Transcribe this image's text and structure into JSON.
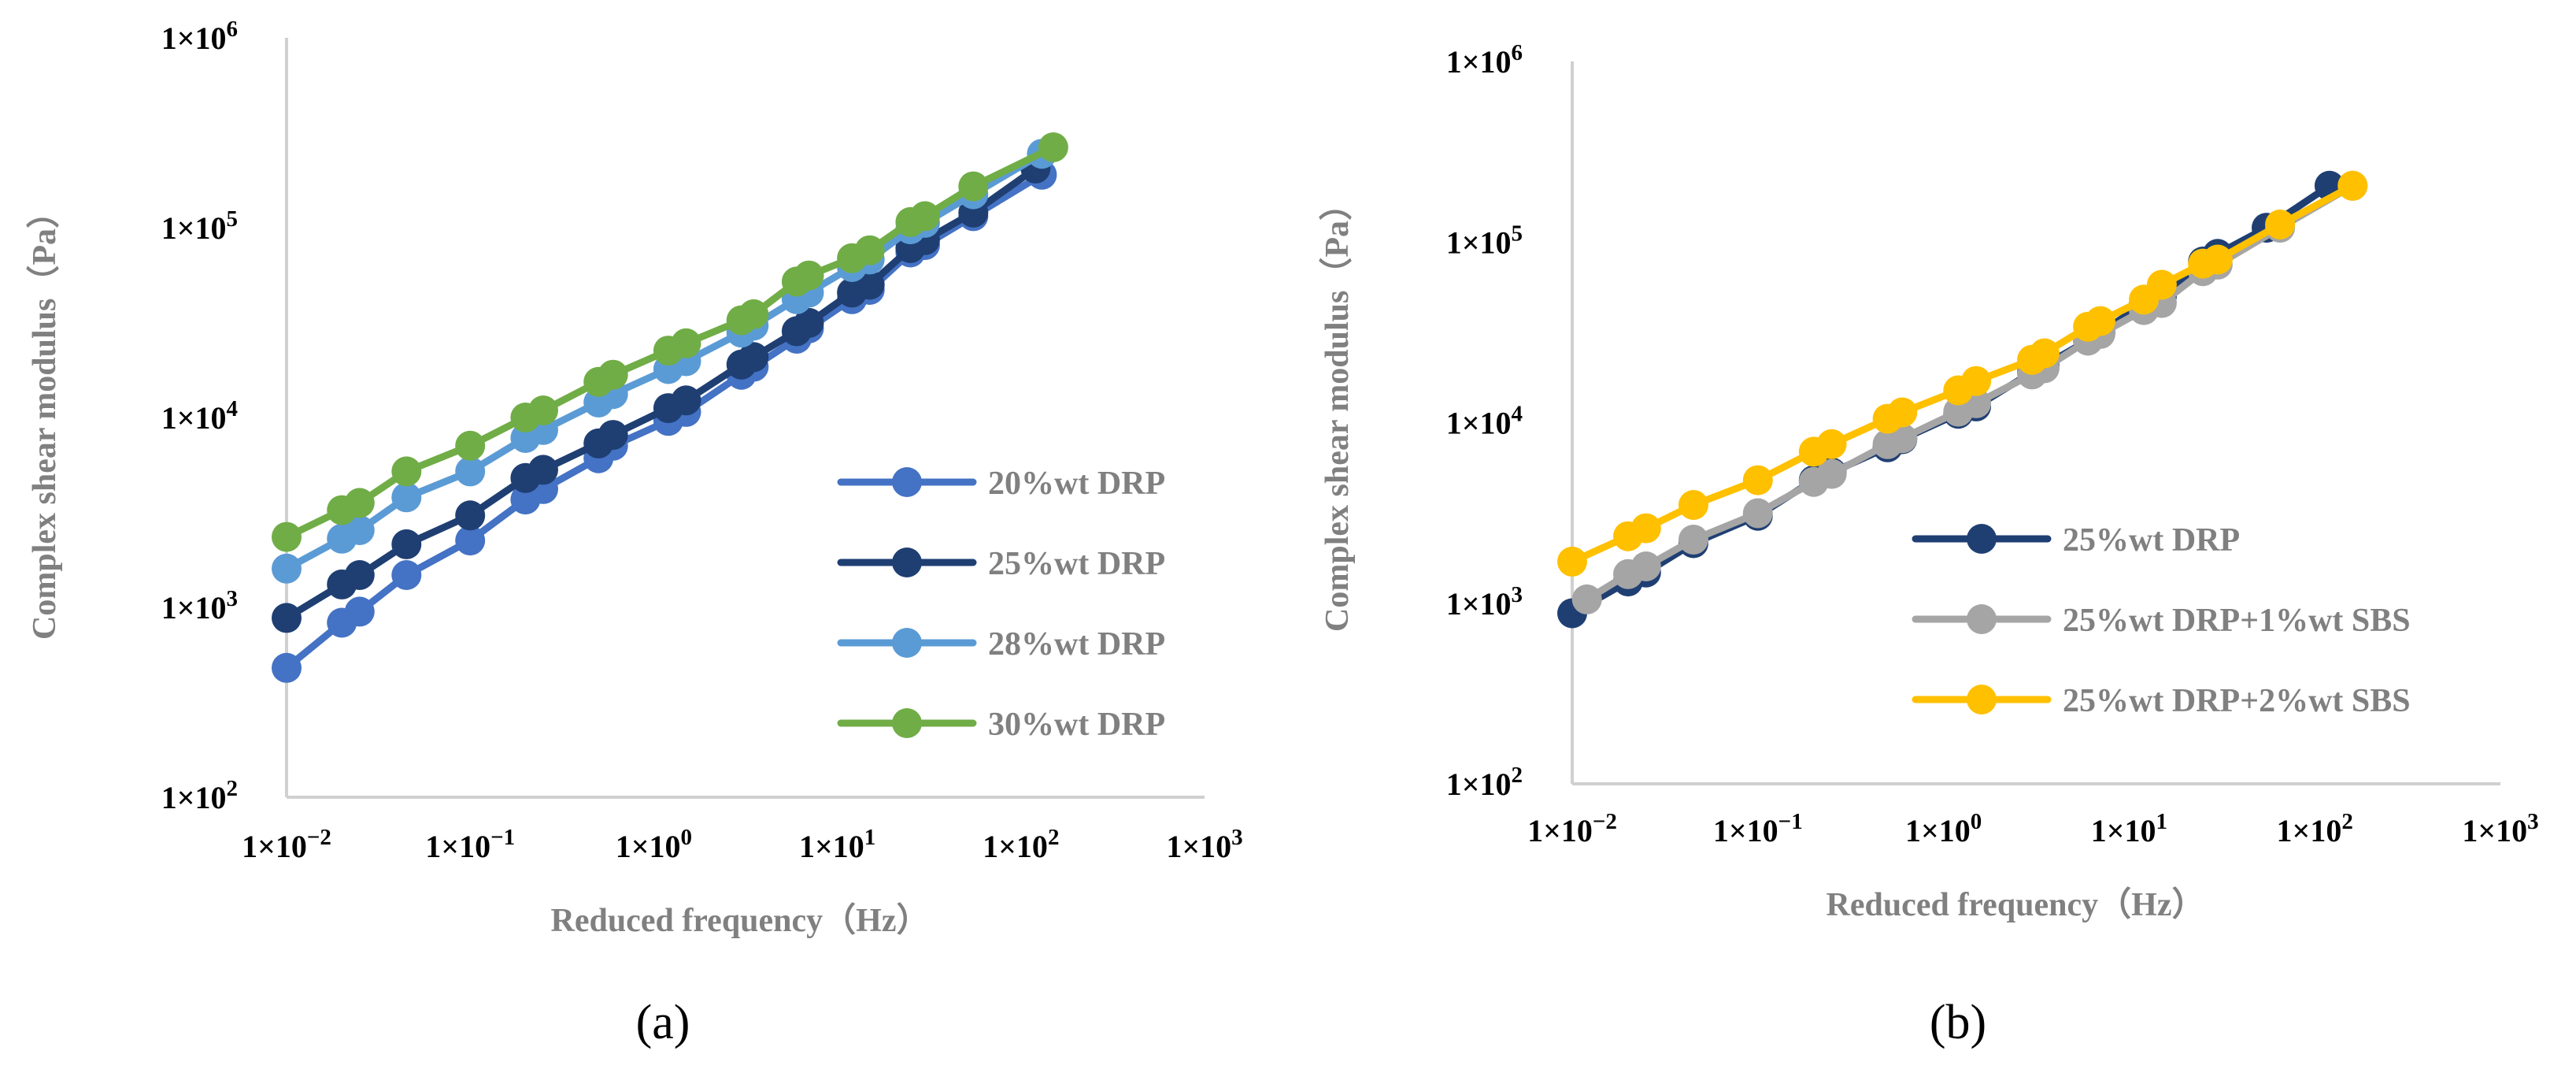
{
  "figure": {
    "panel_labels": [
      "(a)",
      "(b)"
    ]
  },
  "chart_data": [
    {
      "type": "line",
      "panel": "(a)",
      "title": "",
      "xlabel": "Reduced frequency（Hz）",
      "ylabel": "Complex shear modulus（Pa）",
      "xscale": "log",
      "yscale": "log",
      "xlim": [
        0.01,
        1000
      ],
      "ylim": [
        100,
        1000000
      ],
      "xticks": [
        {
          "value": 0.01,
          "mant": "1×10",
          "exp": "−2"
        },
        {
          "value": 0.1,
          "mant": "1×10",
          "exp": "−1"
        },
        {
          "value": 1,
          "mant": "1×10",
          "exp": "0"
        },
        {
          "value": 10,
          "mant": "1×10",
          "exp": "1"
        },
        {
          "value": 100,
          "mant": "1×10",
          "exp": "2"
        },
        {
          "value": 1000,
          "mant": "1×10",
          "exp": "3"
        }
      ],
      "yticks": [
        {
          "value": 100,
          "mant": "1×10",
          "exp": "2"
        },
        {
          "value": 1000,
          "mant": "1×10",
          "exp": "3"
        },
        {
          "value": 10000,
          "mant": "1×10",
          "exp": "4"
        },
        {
          "value": 100000,
          "mant": "1×10",
          "exp": "5"
        },
        {
          "value": 1000000,
          "mant": "1×10",
          "exp": "6"
        }
      ],
      "legend_position": "right",
      "series": [
        {
          "name": "20%wt DRP",
          "color": "#4472C4",
          "x": [
            0.01,
            0.02,
            0.025,
            0.045,
            0.1,
            0.2,
            0.25,
            0.5,
            0.6,
            1.2,
            1.5,
            3,
            3.5,
            6,
            7,
            12,
            15,
            25,
            30,
            55,
            130
          ],
          "y": [
            480,
            830,
            950,
            1480,
            2250,
            3700,
            4200,
            6100,
            7100,
            9600,
            10700,
            16800,
            18500,
            26000,
            29500,
            42000,
            47000,
            74000,
            81000,
            115000,
            190000
          ]
        },
        {
          "name": "25%wt DRP",
          "color": "#1F3F73",
          "x": [
            0.01,
            0.02,
            0.025,
            0.045,
            0.1,
            0.2,
            0.25,
            0.5,
            0.6,
            1.2,
            1.5,
            3,
            3.5,
            6,
            7,
            12,
            15,
            25,
            30,
            55,
            120
          ],
          "y": [
            880,
            1320,
            1480,
            2150,
            3050,
            4800,
            5300,
            7300,
            8100,
            11200,
            12300,
            19000,
            20800,
            28500,
            31500,
            45500,
            50000,
            78000,
            86000,
            120000,
            205000
          ]
        },
        {
          "name": "28%wt DRP",
          "color": "#5B9BD5",
          "x": [
            0.01,
            0.02,
            0.025,
            0.045,
            0.1,
            0.2,
            0.25,
            0.5,
            0.6,
            1.2,
            1.5,
            3,
            3.5,
            6,
            7,
            12,
            15,
            25,
            30,
            55,
            130
          ],
          "y": [
            1600,
            2300,
            2550,
            3800,
            5200,
            7800,
            8600,
            12000,
            13300,
            18000,
            19800,
            28000,
            30500,
            42000,
            45500,
            62000,
            68000,
            98000,
            106000,
            150000,
            245000
          ]
        },
        {
          "name": "30%wt DRP",
          "color": "#70AD47",
          "x": [
            0.01,
            0.02,
            0.025,
            0.045,
            0.1,
            0.2,
            0.25,
            0.5,
            0.6,
            1.2,
            1.5,
            3,
            3.5,
            6,
            7,
            12,
            15,
            25,
            30,
            55,
            150
          ],
          "y": [
            2350,
            3250,
            3550,
            5200,
            7100,
            10000,
            10900,
            15400,
            16800,
            22500,
            24600,
            32500,
            35000,
            52000,
            56000,
            69000,
            76000,
            107000,
            115000,
            165000,
            265000
          ]
        }
      ]
    },
    {
      "type": "line",
      "panel": "(b)",
      "title": "",
      "xlabel": "Reduced frequency（Hz）",
      "ylabel": "Complex shear modulus（Pa）",
      "xscale": "log",
      "yscale": "log",
      "xlim": [
        0.01,
        1000
      ],
      "ylim": [
        100,
        1000000
      ],
      "xticks": [
        {
          "value": 0.01,
          "mant": "1×10",
          "exp": "−2"
        },
        {
          "value": 0.1,
          "mant": "1×10",
          "exp": "−1"
        },
        {
          "value": 1,
          "mant": "1×10",
          "exp": "0"
        },
        {
          "value": 10,
          "mant": "1×10",
          "exp": "1"
        },
        {
          "value": 100,
          "mant": "1×10",
          "exp": "2"
        },
        {
          "value": 1000,
          "mant": "1×10",
          "exp": "3"
        }
      ],
      "yticks": [
        {
          "value": 100,
          "mant": "1×10",
          "exp": "2"
        },
        {
          "value": 1000,
          "mant": "1×10",
          "exp": "3"
        },
        {
          "value": 10000,
          "mant": "1×10",
          "exp": "4"
        },
        {
          "value": 100000,
          "mant": "1×10",
          "exp": "5"
        },
        {
          "value": 1000000,
          "mant": "1×10",
          "exp": "6"
        }
      ],
      "legend_position": "right",
      "series": [
        {
          "name": "25%wt DRP",
          "color": "#1F3F73",
          "x": [
            0.01,
            0.02,
            0.025,
            0.045,
            0.1,
            0.2,
            0.25,
            0.5,
            0.6,
            1.2,
            1.5,
            3,
            3.5,
            6,
            7,
            12,
            15,
            25,
            30,
            55,
            120
          ],
          "y": [
            880,
            1320,
            1480,
            2150,
            3050,
            4800,
            5300,
            7300,
            8100,
            11200,
            12300,
            19000,
            20800,
            28500,
            31500,
            45500,
            50000,
            78000,
            86000,
            120000,
            205000
          ]
        },
        {
          "name": "25%wt DRP+1%wt SBS",
          "color": "#A5A5A5",
          "x": [
            0.012,
            0.02,
            0.025,
            0.045,
            0.1,
            0.2,
            0.25,
            0.5,
            0.6,
            1.2,
            1.5,
            3,
            3.5,
            6,
            7,
            12,
            15,
            25,
            30,
            65,
            160
          ],
          "y": [
            1050,
            1450,
            1600,
            2250,
            3150,
            4700,
            5200,
            7600,
            8200,
            11500,
            12800,
            18500,
            20000,
            28500,
            31000,
            42000,
            46000,
            69000,
            75000,
            120000,
            205000
          ]
        },
        {
          "name": "25%wt DRP+2%wt SBS",
          "color": "#FFC000",
          "x": [
            0.01,
            0.02,
            0.025,
            0.045,
            0.1,
            0.2,
            0.25,
            0.5,
            0.6,
            1.2,
            1.5,
            3,
            3.5,
            6,
            7,
            12,
            15,
            25,
            30,
            65,
            160
          ],
          "y": [
            1700,
            2350,
            2600,
            3500,
            4800,
            6900,
            7600,
            10500,
            11400,
            15100,
            17000,
            22300,
            24200,
            34000,
            36500,
            48000,
            58000,
            76000,
            80000,
            125000,
            205000
          ]
        }
      ]
    }
  ]
}
